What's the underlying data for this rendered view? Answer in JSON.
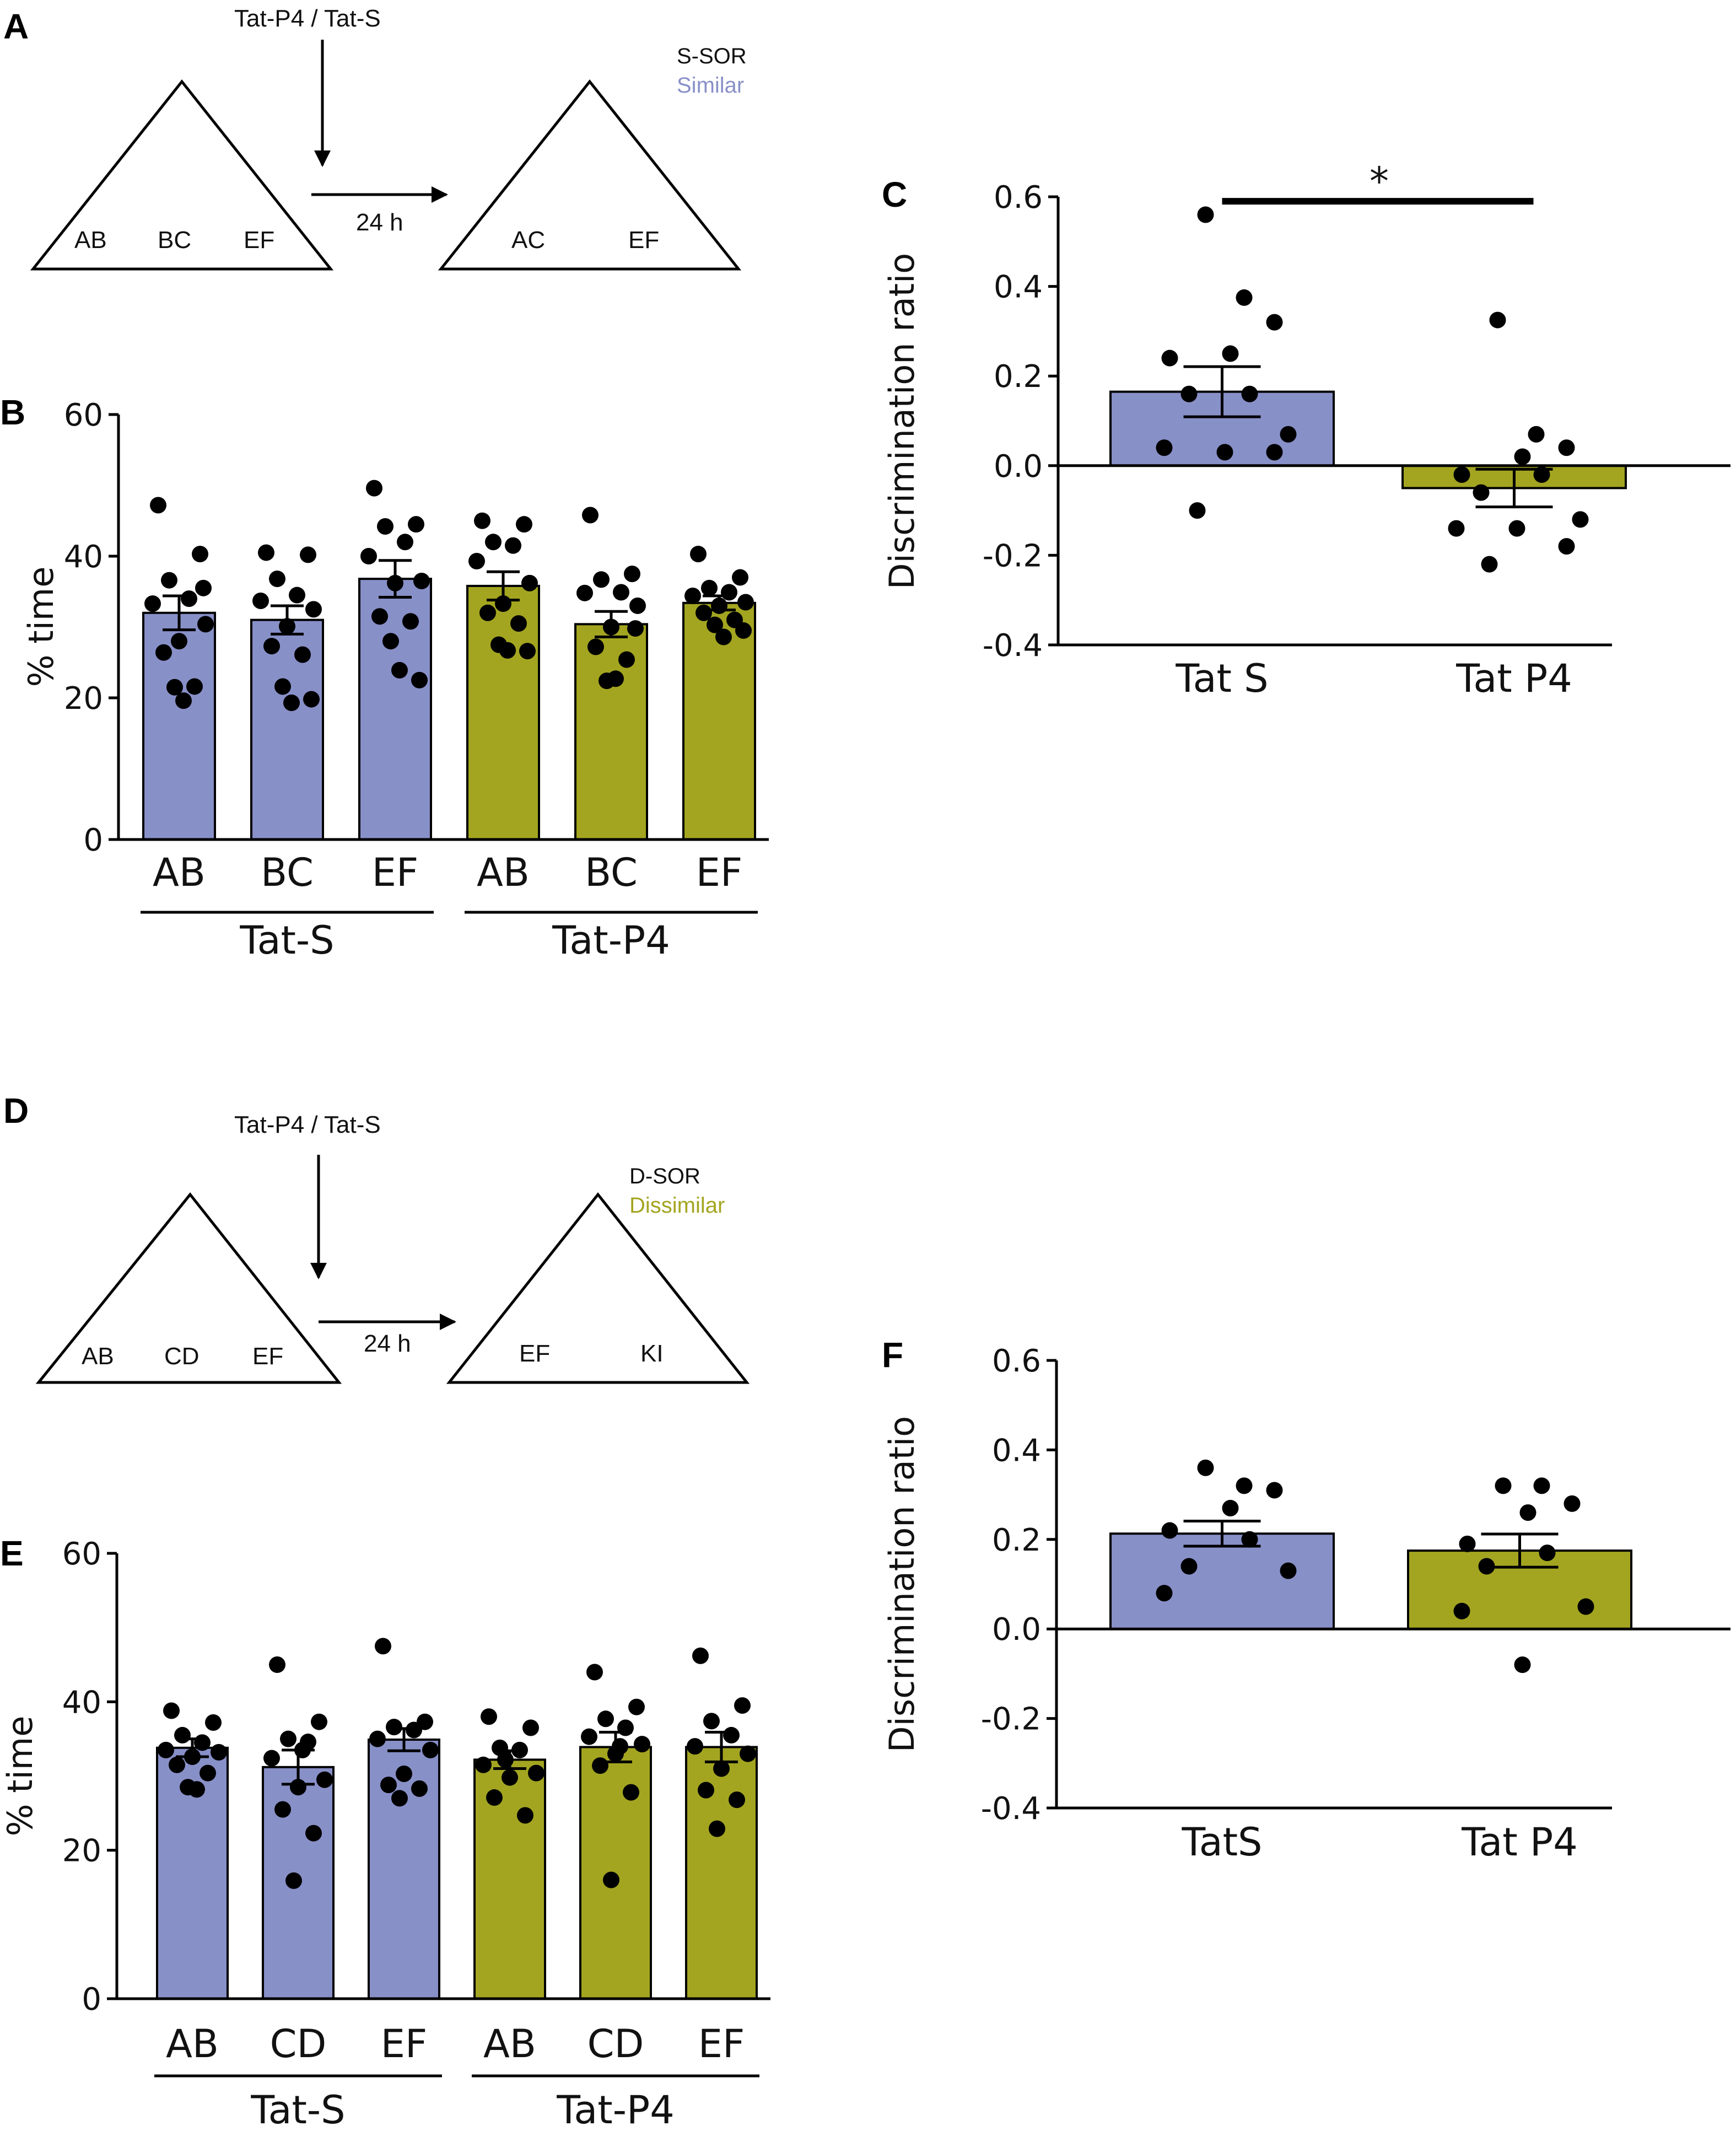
{
  "colors": {
    "tat_s": "#8890c8",
    "tat_p4": "#a3a520",
    "ink": "#000000"
  },
  "panels": {
    "A": {
      "letter": "A",
      "injection": "Tat-P4 / Tat-S",
      "delay": "24 h",
      "task": "S-SOR",
      "task_type": "Similar",
      "training_objects": [
        "AB",
        "BC",
        "EF"
      ],
      "test_objects": [
        "AC",
        "EF"
      ]
    },
    "D": {
      "letter": "D",
      "injection": "Tat-P4 / Tat-S",
      "delay": "24 h",
      "task": "D-SOR",
      "task_type": "Dissimilar",
      "training_objects": [
        "AB",
        "CD",
        "EF"
      ],
      "test_objects": [
        "EF",
        "KI"
      ]
    }
  },
  "chart_data": [
    {
      "id": "B",
      "letter": "B",
      "type": "bar",
      "ylabel": "% time",
      "ylim": [
        0,
        60
      ],
      "yticks": [
        "0",
        "20",
        "40",
        "60"
      ],
      "categories": [
        "AB",
        "BC",
        "EF",
        "AB",
        "BC",
        "EF"
      ],
      "groups": [
        {
          "label": "Tat-S",
          "indices": [
            0,
            1,
            2
          ]
        },
        {
          "label": "Tat-P4",
          "indices": [
            3,
            4,
            5
          ]
        }
      ],
      "series_color": [
        "tat_s",
        "tat_s",
        "tat_s",
        "tat_p4",
        "tat_p4",
        "tat_p4"
      ],
      "values": [
        32.0,
        31.0,
        36.8,
        35.8,
        30.4,
        33.4
      ],
      "sem": [
        2.4,
        2.0,
        2.6,
        2.0,
        1.8,
        1.0
      ],
      "points": [
        [
          47.2,
          40.3,
          36.6,
          34.0,
          33.3,
          30.4,
          28.0,
          26.4,
          21.6,
          21.5,
          19.6,
          35.5
        ],
        [
          40.5,
          40.2,
          36.8,
          34.5,
          33.7,
          32.5,
          30.1,
          27.3,
          26.1,
          21.6,
          19.3,
          19.8
        ],
        [
          49.6,
          44.5,
          44.2,
          42.0,
          40.0,
          36.5,
          36.2,
          31.5,
          30.8,
          28.0,
          23.9,
          22.5
        ],
        [
          45.0,
          44.5,
          42.0,
          41.5,
          39.3,
          36.2,
          33.3,
          32.0,
          30.5,
          27.5,
          26.7,
          26.6
        ],
        [
          45.8,
          37.5,
          36.7,
          34.9,
          34.8,
          33.0,
          30.0,
          27.2,
          25.4,
          22.4,
          22.7,
          29.8
        ],
        [
          40.3,
          37.0,
          35.5,
          34.9,
          34.4,
          33.5,
          33.0,
          32.0,
          31.0,
          30.3,
          28.6,
          29.5
        ]
      ]
    },
    {
      "id": "C",
      "letter": "C",
      "type": "bar",
      "ylabel": "Discrimination ratio",
      "ylim": [
        -0.4,
        0.6
      ],
      "yticks": [
        "-0.4",
        "-0.2",
        "0.0",
        "0.2",
        "0.4",
        "0.6"
      ],
      "categories": [
        "Tat S",
        "Tat P4"
      ],
      "series_color": [
        "tat_s",
        "tat_p4"
      ],
      "values": [
        0.165,
        -0.05
      ],
      "sem": [
        0.056,
        0.042
      ],
      "points": [
        [
          0.56,
          0.375,
          0.32,
          0.25,
          0.24,
          0.16,
          0.16,
          0.07,
          0.04,
          0.03,
          0.03,
          -0.1
        ],
        [
          0.325,
          0.07,
          0.04,
          0.02,
          -0.02,
          -0.02,
          -0.06,
          -0.12,
          -0.14,
          -0.14,
          -0.18,
          -0.22
        ]
      ],
      "significance": "*"
    },
    {
      "id": "E",
      "letter": "E",
      "type": "bar",
      "ylabel": "% time",
      "ylim": [
        0,
        60
      ],
      "yticks": [
        "0",
        "20",
        "40",
        "60"
      ],
      "categories": [
        "AB",
        "CD",
        "EF",
        "AB",
        "CD",
        "EF"
      ],
      "groups": [
        {
          "label": "Tat-S",
          "indices": [
            0,
            1,
            2
          ]
        },
        {
          "label": "Tat-P4",
          "indices": [
            3,
            4,
            5
          ]
        }
      ],
      "series_color": [
        "tat_s",
        "tat_s",
        "tat_s",
        "tat_p4",
        "tat_p4",
        "tat_p4"
      ],
      "values": [
        33.8,
        31.2,
        34.9,
        32.2,
        33.9,
        33.9
      ],
      "sem": [
        1.2,
        2.3,
        1.5,
        1.2,
        2.0,
        2.0
      ],
      "points": [
        [
          38.8,
          37.2,
          35.5,
          34.5,
          33.5,
          33.2,
          32.6,
          31.5,
          30.4,
          28.5,
          28.2
        ],
        [
          45.0,
          37.3,
          35.0,
          34.6,
          32.4,
          29.5,
          28.5,
          25.5,
          22.3,
          15.9,
          33.5
        ],
        [
          47.5,
          37.3,
          36.6,
          36.2,
          35.0,
          33.5,
          30.3,
          28.8,
          28.3,
          27.0
        ],
        [
          38.0,
          36.5,
          33.8,
          33.5,
          31.5,
          30.4,
          29.8,
          27.1,
          24.7,
          32.2
        ],
        [
          44.0,
          39.3,
          37.7,
          36.5,
          35.3,
          34.3,
          33.0,
          31.4,
          27.8,
          16.0,
          34.0
        ],
        [
          46.2,
          39.5,
          37.4,
          35.5,
          34.0,
          33.0,
          31.0,
          28.1,
          26.8,
          22.9
        ]
      ]
    },
    {
      "id": "F",
      "letter": "F",
      "type": "bar",
      "ylabel": "Discrimination ratio",
      "ylim": [
        -0.4,
        0.6
      ],
      "yticks": [
        "-0.4",
        "-0.2",
        "0.0",
        "0.2",
        "0.4",
        "0.6"
      ],
      "categories": [
        "TatS",
        "Tat P4"
      ],
      "series_color": [
        "tat_s",
        "tat_p4"
      ],
      "values": [
        0.213,
        0.175
      ],
      "sem": [
        0.028,
        0.037
      ],
      "points": [
        [
          0.36,
          0.32,
          0.31,
          0.27,
          0.22,
          0.2,
          0.14,
          0.13,
          0.08
        ],
        [
          0.32,
          0.32,
          0.28,
          0.26,
          0.19,
          0.17,
          0.14,
          0.05,
          0.04,
          -0.08
        ]
      ]
    }
  ]
}
